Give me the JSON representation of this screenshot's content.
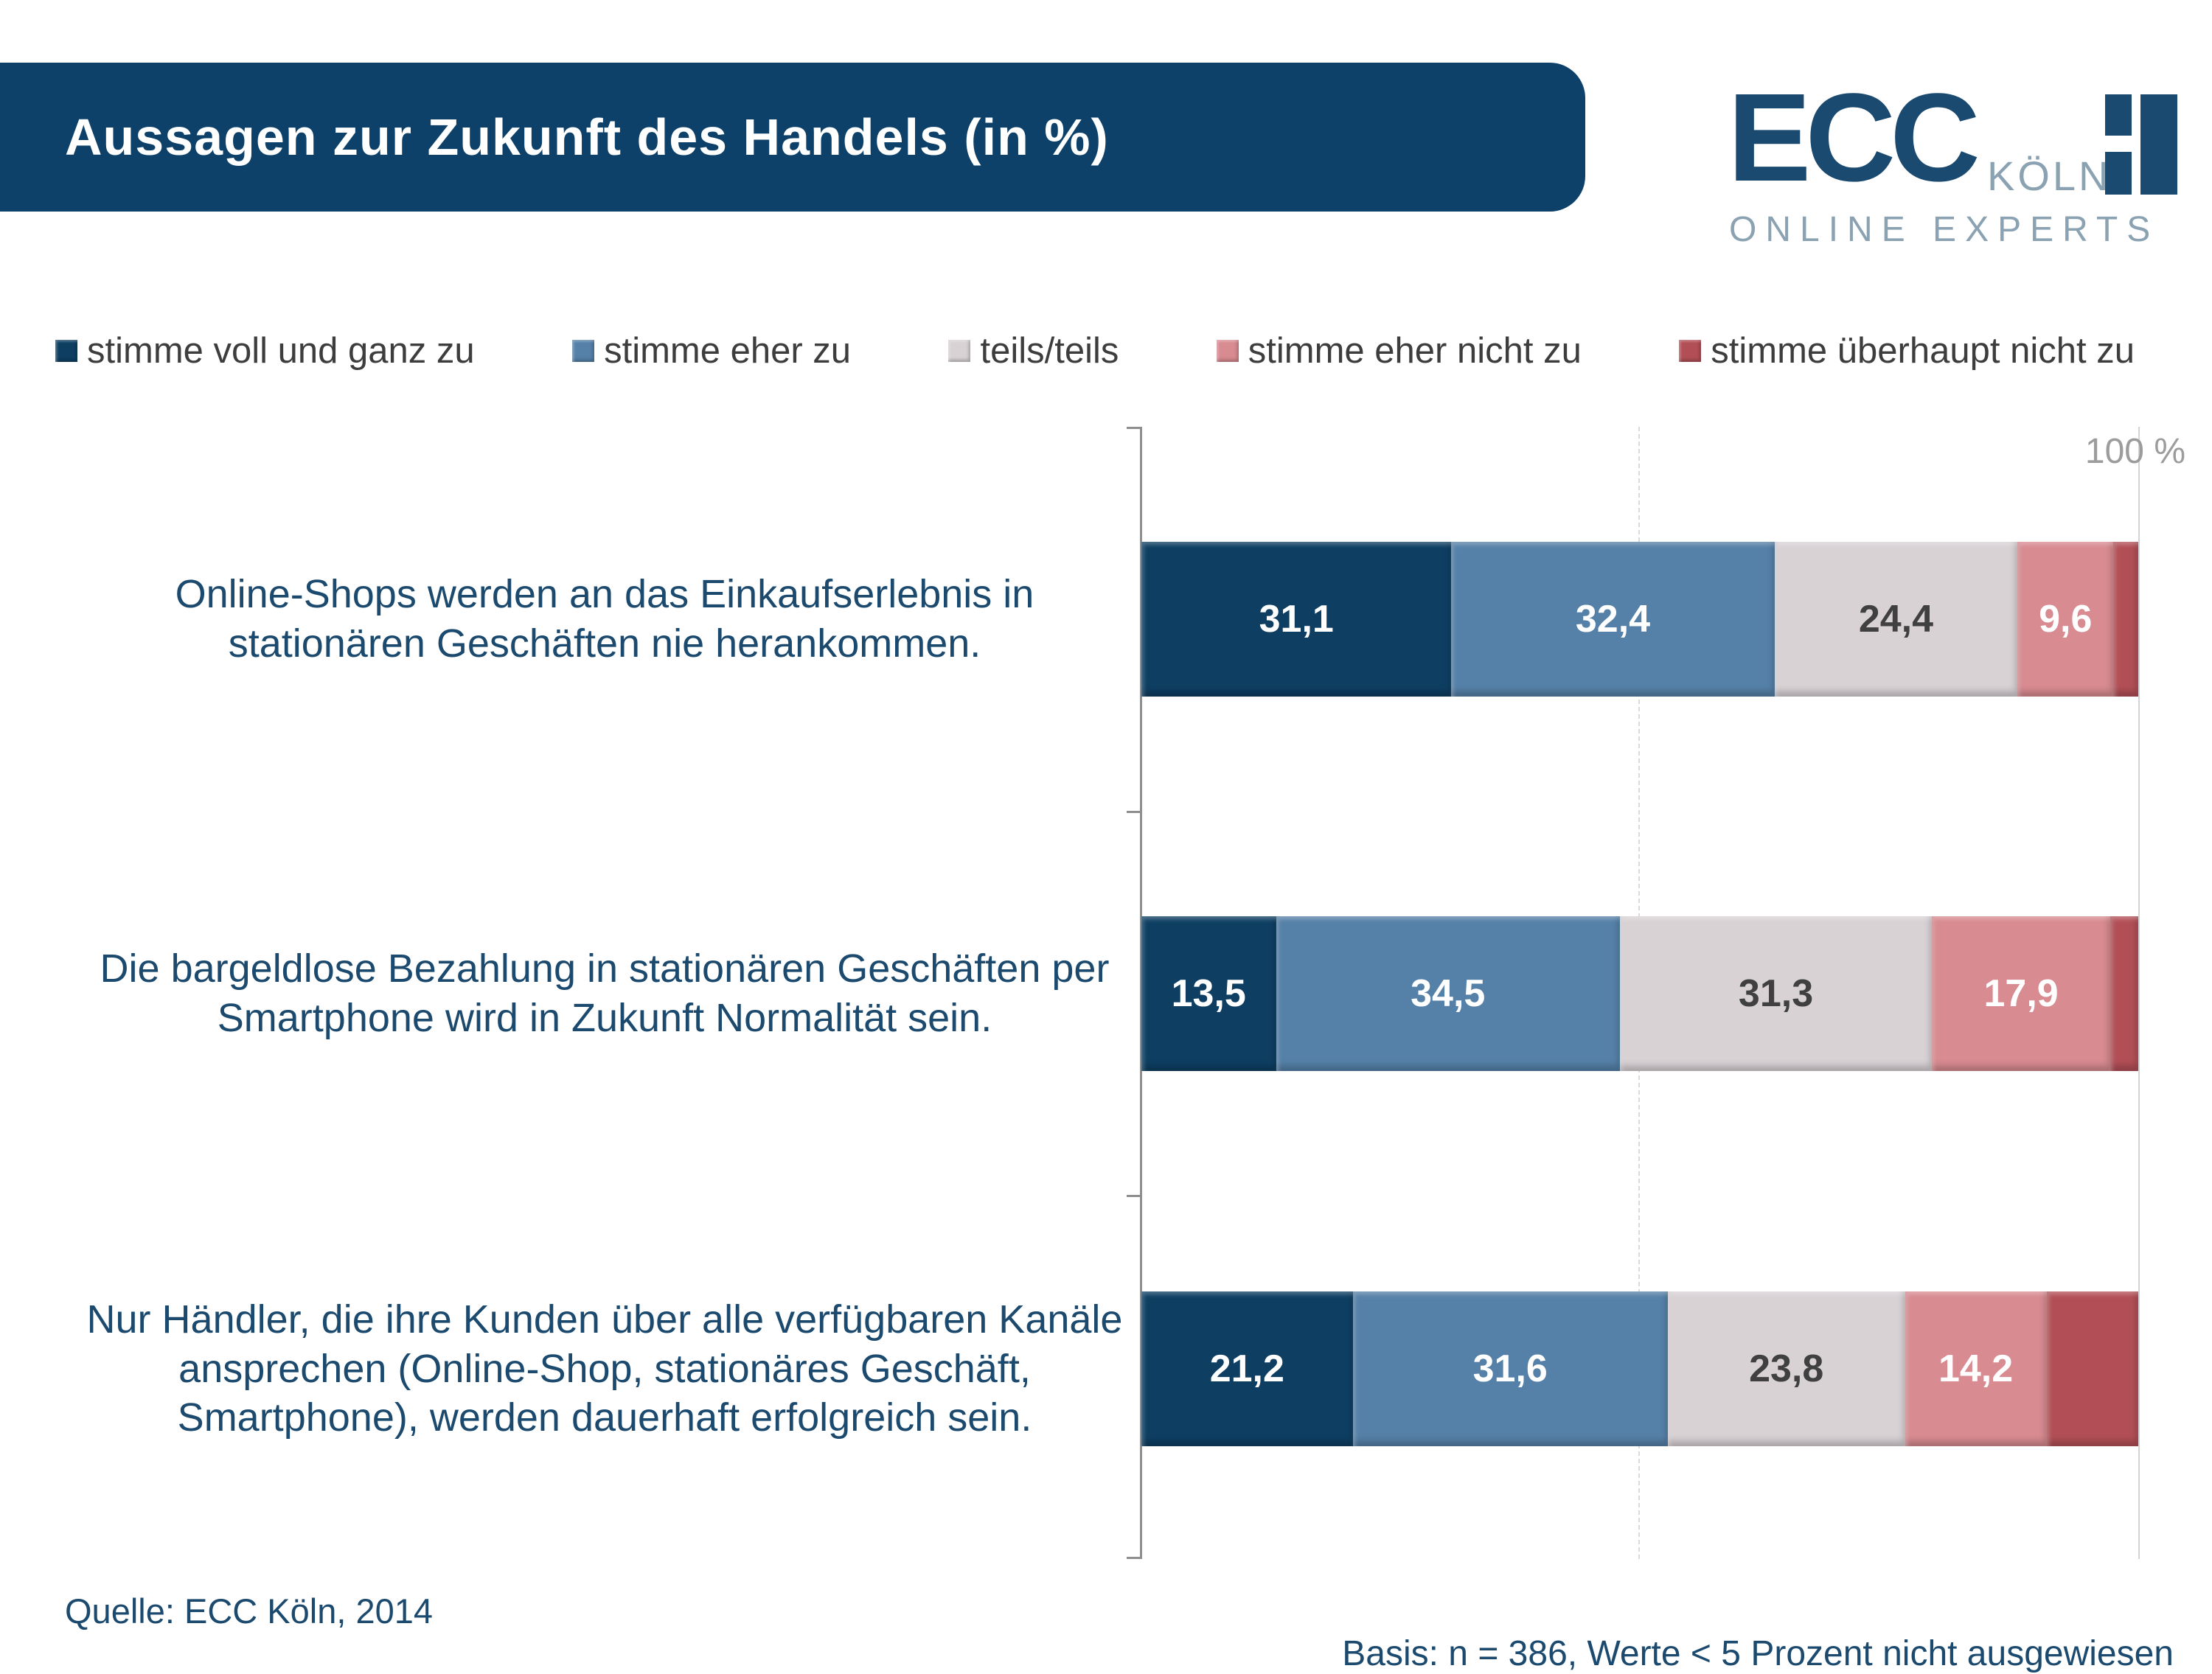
{
  "header": {
    "title": "Aussagen zur Zukunft des Handels (in %)"
  },
  "logo": {
    "ecc": "ECC",
    "koeln": "KÖLN",
    "subtitle": "ONLINE EXPERTS"
  },
  "chart_data": {
    "type": "bar",
    "orientation": "horizontal_stacked",
    "title": "Aussagen zur Zukunft des Handels (in %)",
    "unit": "percent",
    "categories": [
      "Online-Shops werden an das Einkaufserlebnis in stationären Geschäften nie herankommen.",
      "Die bargeldlose Bezahlung in stationären Geschäften per Smartphone wird in Zukunft Normalität sein.",
      "Nur Händler, die ihre Kunden über alle verfügbaren Kanäle ansprechen (Online-Shop, stationäres Geschäft, Smartphone), werden dauerhaft erfolgreich sein."
    ],
    "series": [
      {
        "name": "stimme voll und ganz zu",
        "color": "#0e3f63",
        "label_color": "#ffffff",
        "values": [
          31.1,
          13.5,
          21.2
        ],
        "value_labels": [
          "31,1",
          "13,5",
          "21,2"
        ]
      },
      {
        "name": "stimme eher zu",
        "color": "#5581a8",
        "label_color": "#ffffff",
        "values": [
          32.4,
          34.5,
          31.6
        ],
        "value_labels": [
          "32,4",
          "34,5",
          "31,6"
        ]
      },
      {
        "name": "teils/teils",
        "color": "#d8d2d5",
        "label_color": "#404040",
        "values": [
          24.4,
          31.3,
          23.8
        ],
        "value_labels": [
          "24,4",
          "31,3",
          "23,8"
        ]
      },
      {
        "name": "stimme eher nicht zu",
        "color": "#d88b91",
        "label_color": "#ffffff",
        "values": [
          9.6,
          17.9,
          14.2
        ],
        "value_labels": [
          "9,6",
          "17,9",
          "14,2"
        ]
      },
      {
        "name": "stimme überhaupt nicht zu",
        "color": "#b24f56",
        "label_color": "#ffffff",
        "values": [
          2.5,
          2.8,
          9.2
        ],
        "value_labels": [
          null,
          null,
          null
        ]
      }
    ],
    "xlim": [
      0,
      100
    ],
    "x_max_tick_label": "100 %",
    "gridlines": {
      "dashed_at_percent": 50,
      "solid_at_percent": 100
    },
    "legend_position": "top"
  },
  "footer": {
    "source": "Quelle: ECC Köln, 2014",
    "basis": "Basis: n = 386, Werte < 5 Prozent nicht ausgewiesen"
  }
}
